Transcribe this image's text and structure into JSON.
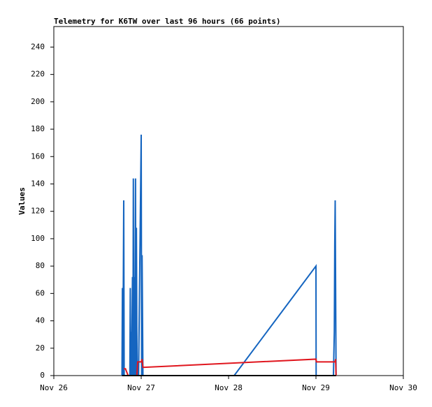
{
  "chart_data": {
    "type": "line",
    "title": "Telemetry for K6TW over last 96 hours (66 points)",
    "y_label": "Values",
    "xlim": [
      0,
      4
    ],
    "xticks": [
      {
        "value": 0,
        "label": "Nov 26"
      },
      {
        "value": 1,
        "label": "Nov 27"
      },
      {
        "value": 2,
        "label": "Nov 28"
      },
      {
        "value": 3,
        "label": "Nov 29"
      },
      {
        "value": 4,
        "label": "Nov 30"
      }
    ],
    "ylim": [
      0,
      255
    ],
    "yticks": [
      0,
      20,
      40,
      60,
      80,
      100,
      120,
      140,
      160,
      180,
      200,
      220,
      240
    ],
    "grid": false,
    "series": [
      {
        "color": "#1565c0",
        "x": [
          0.78,
          0.785,
          0.79,
          0.8,
          0.805,
          0.87,
          0.875,
          0.88,
          0.885,
          0.89,
          0.9,
          0.905,
          0.91,
          0.915,
          0.92,
          0.925,
          0.93,
          0.935,
          0.94,
          0.945,
          0.95,
          0.955,
          0.96,
          0.97,
          1.0,
          1.005,
          1.01,
          1.02,
          2.064,
          3.0,
          3.002,
          3.2,
          3.21,
          3.215,
          3.22,
          3.225,
          3.23
        ],
        "values": [
          0,
          64,
          0,
          128,
          0,
          0,
          64,
          0,
          32,
          0,
          72,
          0,
          144,
          0,
          72,
          0,
          72,
          144,
          0,
          108,
          36,
          0,
          10,
          0,
          176,
          0,
          88,
          0,
          0,
          80,
          0,
          0,
          32,
          96,
          128,
          64,
          0
        ]
      },
      {
        "color": "#e0161e",
        "x": [
          0.8,
          0.82,
          0.85,
          0.95,
          0.96,
          1.0,
          1.01,
          1.02,
          3.0,
          3.005,
          3.22,
          3.225,
          3.23
        ],
        "values": [
          5,
          5,
          0,
          0,
          10,
          10,
          12,
          6,
          12,
          10,
          10,
          12,
          0
        ]
      },
      {
        "color": "#000000",
        "x": [
          0.78,
          3.23
        ],
        "values": [
          0,
          0
        ]
      }
    ]
  }
}
